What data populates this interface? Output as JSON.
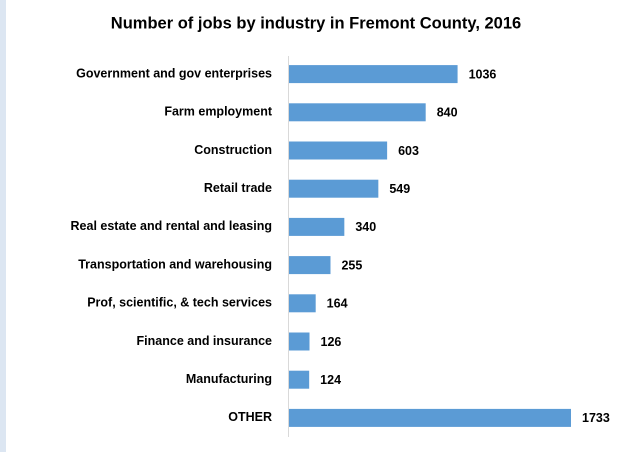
{
  "chart_data": {
    "type": "bar",
    "orientation": "horizontal",
    "title": "Number of jobs by industry in Fremont County, 2016",
    "categories": [
      "Government and gov enterprises",
      "Farm employment",
      "Construction",
      "Retail trade",
      "Real estate and rental and leasing",
      "Transportation and warehousing",
      "Prof, scientific, & tech services",
      "Finance and insurance",
      "Manufacturing",
      "OTHER"
    ],
    "values": [
      1036,
      840,
      603,
      549,
      340,
      255,
      164,
      126,
      124,
      1733
    ],
    "color": "#5b9bd5"
  }
}
